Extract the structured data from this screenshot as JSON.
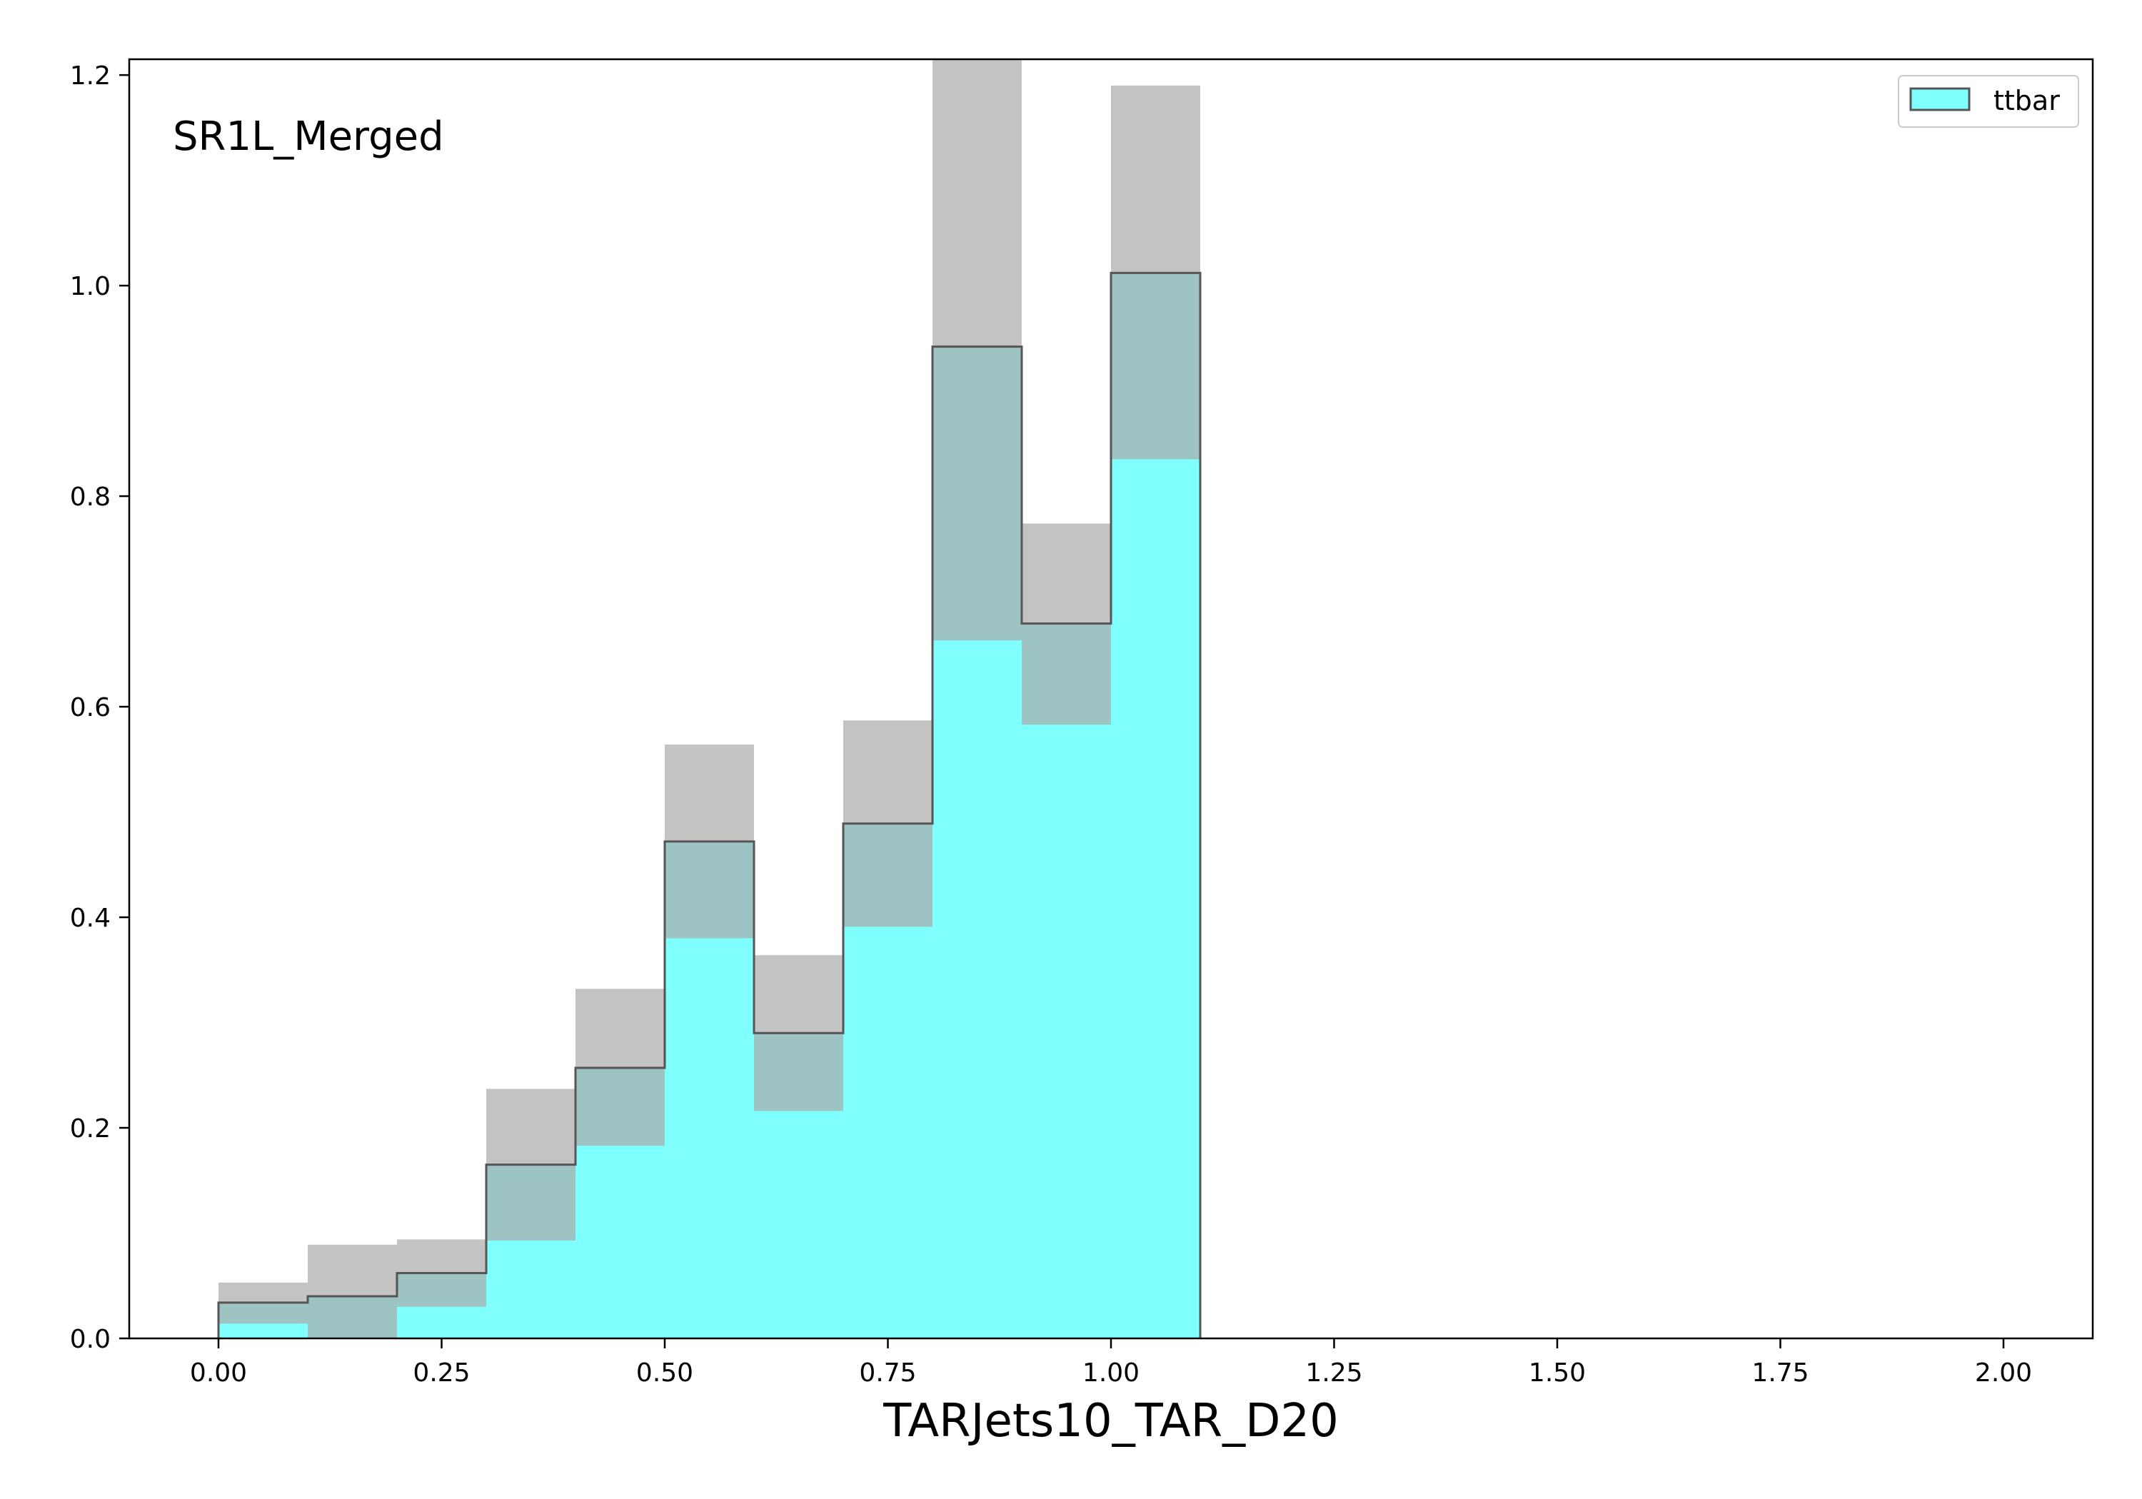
{
  "chart_data": {
    "type": "bar",
    "annotation": "SR1L_Merged",
    "xlabel": "TARJets10_TAR_D20",
    "ylabel": "",
    "xlim": [
      -0.1,
      2.1
    ],
    "ylim": [
      0,
      1.215
    ],
    "xticks": [
      "0.00",
      "0.25",
      "0.50",
      "0.75",
      "1.00",
      "1.25",
      "1.50",
      "1.75",
      "2.00"
    ],
    "xtick_values": [
      0,
      0.25,
      0.5,
      0.75,
      1.0,
      1.25,
      1.5,
      1.75,
      2.0
    ],
    "yticks": [
      "0.0",
      "0.2",
      "0.4",
      "0.6",
      "0.8",
      "1.0",
      "1.2"
    ],
    "ytick_values": [
      0,
      0.2,
      0.4,
      0.6,
      0.8,
      1.0,
      1.2
    ],
    "bin_edges": [
      0,
      0.1,
      0.2,
      0.3,
      0.4,
      0.5,
      0.6,
      0.7,
      0.8,
      0.9,
      1.0,
      1.1
    ],
    "series": [
      {
        "name": "ttbar",
        "values": [
          0.034,
          0.04,
          0.062,
          0.165,
          0.257,
          0.472,
          0.29,
          0.489,
          0.942,
          0.679,
          1.012
        ],
        "err_low": [
          0.014,
          0.0,
          0.03,
          0.093,
          0.183,
          0.38,
          0.216,
          0.391,
          0.663,
          0.583,
          0.835
        ],
        "err_high": [
          0.053,
          0.089,
          0.094,
          0.237,
          0.332,
          0.564,
          0.364,
          0.587,
          1.215,
          0.774,
          1.19
        ]
      }
    ],
    "legend": {
      "position": "top-right",
      "entries": [
        "ttbar"
      ]
    },
    "colors": {
      "fill": "#80ffff",
      "edge": "#555555",
      "uncertainty": "#a9a9a9"
    },
    "grid": false
  }
}
